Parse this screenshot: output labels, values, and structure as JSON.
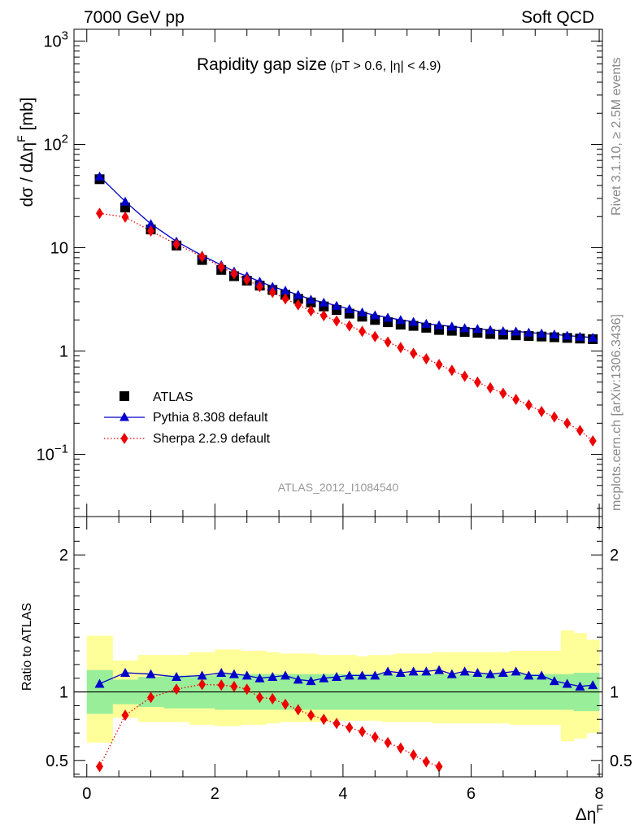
{
  "header": {
    "left": "7000 GeV pp",
    "right": "Soft QCD"
  },
  "side_text": {
    "rivet": "Rivet 3.1.10, ≥ 2.5M events",
    "mcplots": "mcplots.cern.ch [arXiv:1306.3436]"
  },
  "analysis_label": "ATLAS_2012_I1084540",
  "chart_data": [
    {
      "type": "scatter",
      "title_main": "Rapidity gap size",
      "title_sub": "(pT > 0.6, |η| < 4.9)",
      "ylabel": "dσ / dΔηF [mb]",
      "ylabel_parts": {
        "main": "dσ / dΔη",
        "sup": "F",
        "unit": " [mb]"
      },
      "yscale": "log",
      "ylim": [
        0.025,
        1300
      ],
      "xlim": [
        -0.2,
        8.05
      ],
      "y_ticks": [
        {
          "value": 1000,
          "mantissa": "10",
          "exp": "3"
        },
        {
          "value": 100,
          "mantissa": "10",
          "exp": "2"
        },
        {
          "value": 10,
          "mantissa": "10",
          "exp": ""
        },
        {
          "value": 1,
          "mantissa": "1",
          "exp": ""
        },
        {
          "value": 0.1,
          "mantissa": "10",
          "exp": "−1"
        }
      ],
      "legend_position": "bottom-left",
      "series": [
        {
          "name": "ATLAS",
          "marker": "square",
          "color": "#000000",
          "x": [
            0.2,
            0.6,
            1.0,
            1.4,
            1.8,
            2.1,
            2.3,
            2.5,
            2.7,
            2.9,
            3.1,
            3.3,
            3.5,
            3.7,
            3.9,
            4.1,
            4.3,
            4.5,
            4.7,
            4.9,
            5.1,
            5.3,
            5.5,
            5.7,
            5.9,
            6.1,
            6.3,
            6.5,
            6.7,
            6.9,
            7.1,
            7.3,
            7.5,
            7.7,
            7.9
          ],
          "values": [
            46,
            24.5,
            15,
            10.5,
            7.6,
            6.1,
            5.3,
            4.8,
            4.3,
            3.9,
            3.5,
            3.2,
            2.95,
            2.7,
            2.5,
            2.3,
            2.15,
            2.0,
            1.9,
            1.8,
            1.75,
            1.68,
            1.6,
            1.57,
            1.53,
            1.5,
            1.46,
            1.44,
            1.42,
            1.4,
            1.38,
            1.36,
            1.34,
            1.32,
            1.3
          ]
        },
        {
          "name": "Pythia 8.308 default",
          "marker": "triangle",
          "line": "solid",
          "color": "#0000cc",
          "x": [
            0.2,
            0.6,
            1.0,
            1.4,
            1.8,
            2.1,
            2.3,
            2.5,
            2.7,
            2.9,
            3.1,
            3.3,
            3.5,
            3.7,
            3.9,
            4.1,
            4.3,
            4.5,
            4.7,
            4.9,
            5.1,
            5.3,
            5.5,
            5.7,
            5.9,
            6.1,
            6.3,
            6.5,
            6.7,
            6.9,
            7.1,
            7.3,
            7.5,
            7.7,
            7.9
          ],
          "values": [
            49,
            28,
            17,
            11.5,
            8.4,
            6.8,
            5.9,
            5.3,
            4.7,
            4.2,
            3.85,
            3.5,
            3.15,
            2.95,
            2.75,
            2.55,
            2.37,
            2.22,
            2.11,
            2.0,
            1.92,
            1.84,
            1.78,
            1.73,
            1.67,
            1.64,
            1.6,
            1.56,
            1.55,
            1.51,
            1.48,
            1.45,
            1.41,
            1.38,
            1.35
          ]
        },
        {
          "name": "Sherpa 2.2.9 default",
          "marker": "diamond",
          "line": "dotted",
          "color": "#ee0000",
          "x": [
            0.2,
            0.6,
            1.0,
            1.4,
            1.8,
            2.1,
            2.3,
            2.5,
            2.7,
            2.9,
            3.1,
            3.3,
            3.5,
            3.7,
            3.9,
            4.1,
            4.3,
            4.5,
            4.7,
            4.9,
            5.1,
            5.3,
            5.5,
            5.7,
            5.9,
            6.1,
            6.3,
            6.5,
            6.7,
            6.9,
            7.1,
            7.3,
            7.5,
            7.7,
            7.9
          ],
          "values": [
            21.5,
            19.8,
            14.5,
            10.8,
            8.2,
            6.5,
            5.6,
            4.9,
            4.2,
            3.7,
            3.2,
            2.8,
            2.45,
            2.2,
            1.95,
            1.75,
            1.55,
            1.38,
            1.22,
            1.08,
            0.95,
            0.84,
            0.74,
            0.65,
            0.57,
            0.5,
            0.44,
            0.39,
            0.34,
            0.3,
            0.26,
            0.23,
            0.2,
            0.17,
            0.135
          ]
        }
      ]
    },
    {
      "type": "scatter",
      "ylabel": "Ratio to ATLAS",
      "ylim": [
        0.38,
        2.28
      ],
      "xlim": [
        -0.2,
        8.05
      ],
      "xlabel": "ΔηF",
      "xlabel_parts": {
        "main": "Δη",
        "sup": "F"
      },
      "x_ticks": [
        0,
        2,
        4,
        6,
        8
      ],
      "y_ticks": [
        0.5,
        1,
        2
      ],
      "reference_line": 1,
      "bands": {
        "inner_color": "#99ee99",
        "outer_color": "#ffff99",
        "edges": [
          0,
          0.4,
          0.8,
          1.2,
          1.6,
          2.0,
          2.2,
          2.4,
          2.6,
          2.8,
          3.0,
          3.2,
          3.4,
          3.6,
          3.8,
          4.0,
          4.2,
          4.4,
          4.6,
          4.8,
          5.0,
          5.2,
          5.4,
          5.6,
          5.8,
          6.0,
          6.2,
          6.4,
          6.6,
          6.8,
          7.0,
          7.2,
          7.4,
          7.6,
          7.8,
          8.0
        ],
        "inner_lo": [
          0.84,
          0.91,
          0.89,
          0.88,
          0.88,
          0.87,
          0.87,
          0.87,
          0.87,
          0.87,
          0.87,
          0.87,
          0.87,
          0.87,
          0.87,
          0.87,
          0.87,
          0.87,
          0.87,
          0.87,
          0.87,
          0.87,
          0.87,
          0.87,
          0.87,
          0.87,
          0.87,
          0.87,
          0.87,
          0.87,
          0.87,
          0.87,
          0.87,
          0.86,
          0.86
        ],
        "inner_hi": [
          1.16,
          1.09,
          1.11,
          1.12,
          1.12,
          1.13,
          1.13,
          1.13,
          1.13,
          1.13,
          1.13,
          1.13,
          1.13,
          1.13,
          1.13,
          1.13,
          1.13,
          1.13,
          1.13,
          1.13,
          1.13,
          1.13,
          1.13,
          1.13,
          1.13,
          1.13,
          1.13,
          1.13,
          1.13,
          1.13,
          1.13,
          1.13,
          1.13,
          1.14,
          1.14
        ],
        "outer_lo": [
          0.63,
          0.81,
          0.78,
          0.78,
          0.76,
          0.75,
          0.75,
          0.76,
          0.76,
          0.77,
          0.78,
          0.78,
          0.78,
          0.78,
          0.79,
          0.79,
          0.79,
          0.79,
          0.78,
          0.78,
          0.78,
          0.78,
          0.77,
          0.77,
          0.77,
          0.77,
          0.77,
          0.77,
          0.76,
          0.76,
          0.76,
          0.76,
          0.64,
          0.66,
          0.7
        ],
        "outer_hi": [
          1.41,
          1.23,
          1.27,
          1.27,
          1.29,
          1.31,
          1.31,
          1.3,
          1.3,
          1.29,
          1.28,
          1.28,
          1.28,
          1.27,
          1.27,
          1.27,
          1.26,
          1.27,
          1.27,
          1.28,
          1.28,
          1.28,
          1.29,
          1.29,
          1.29,
          1.29,
          1.29,
          1.29,
          1.3,
          1.3,
          1.3,
          1.3,
          1.45,
          1.43,
          1.38
        ]
      },
      "series": [
        {
          "name": "Pythia 8.308 default",
          "marker": "triangle",
          "line": "solid",
          "color": "#0000cc",
          "x": [
            0.2,
            0.6,
            1.0,
            1.4,
            1.8,
            2.1,
            2.3,
            2.5,
            2.7,
            2.9,
            3.1,
            3.3,
            3.5,
            3.7,
            3.9,
            4.1,
            4.3,
            4.5,
            4.7,
            4.9,
            5.1,
            5.3,
            5.5,
            5.7,
            5.9,
            6.1,
            6.3,
            6.5,
            6.7,
            6.9,
            7.1,
            7.3,
            7.5,
            7.7,
            7.9
          ],
          "values": [
            1.06,
            1.14,
            1.13,
            1.11,
            1.12,
            1.14,
            1.13,
            1.12,
            1.1,
            1.11,
            1.12,
            1.09,
            1.08,
            1.1,
            1.11,
            1.12,
            1.12,
            1.12,
            1.15,
            1.14,
            1.15,
            1.15,
            1.16,
            1.13,
            1.15,
            1.14,
            1.13,
            1.14,
            1.15,
            1.12,
            1.12,
            1.08,
            1.06,
            1.04,
            1.05
          ]
        },
        {
          "name": "Sherpa 2.2.9 default",
          "marker": "diamond",
          "line": "dotted",
          "color": "#ee0000",
          "x": [
            0.2,
            0.6,
            1.0,
            1.4,
            1.8,
            2.1,
            2.3,
            2.5,
            2.7,
            2.9,
            3.1,
            3.3,
            3.5,
            3.7,
            3.9,
            4.1,
            4.3,
            4.5,
            4.7,
            4.9,
            5.1,
            5.3,
            5.5
          ],
          "values": [
            0.455,
            0.83,
            0.96,
            1.02,
            1.055,
            1.05,
            1.04,
            1.02,
            0.96,
            0.95,
            0.91,
            0.87,
            0.83,
            0.8,
            0.77,
            0.74,
            0.71,
            0.67,
            0.63,
            0.59,
            0.54,
            0.49,
            0.455
          ]
        }
      ]
    }
  ]
}
